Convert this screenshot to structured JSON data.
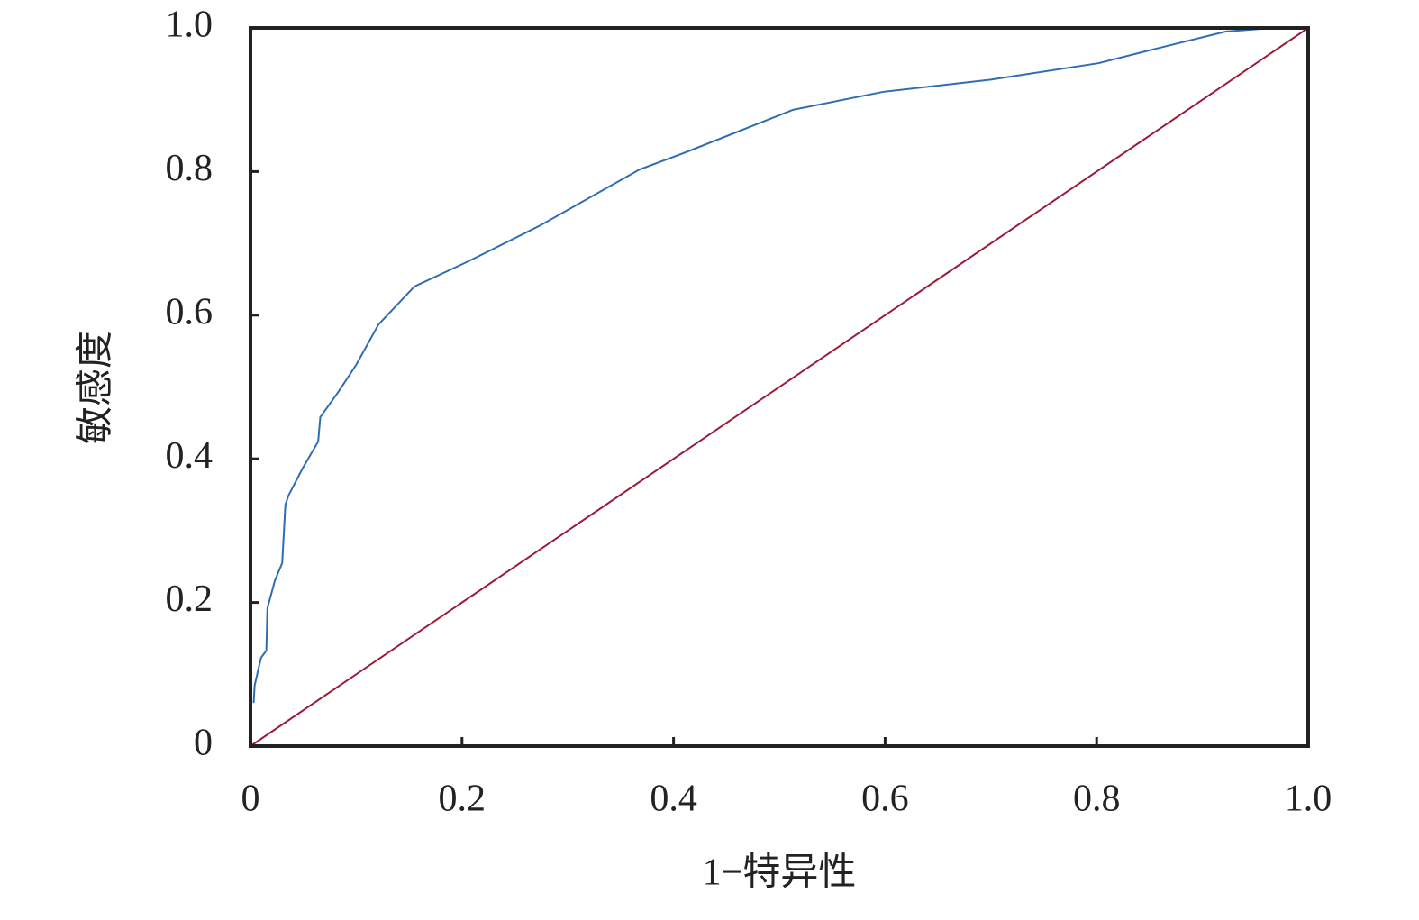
{
  "chart_data": {
    "type": "line",
    "x_label": "1−特异性",
    "y_label": "敏感度",
    "xlim": [
      0,
      1
    ],
    "ylim": [
      0,
      1
    ],
    "xticks": [
      0,
      0.2,
      0.4,
      0.6,
      0.8,
      {
        "value": 1,
        "label": "1.0"
      }
    ],
    "yticks": [
      0,
      0.2,
      0.4,
      0.6,
      0.8,
      {
        "value": 1,
        "label": "1.0"
      }
    ],
    "series": [
      {
        "color": "#2e6db4",
        "x": [
          0.003,
          0.004,
          0.01,
          0.015,
          0.016,
          0.023,
          0.03,
          0.033,
          0.036,
          0.049,
          0.064,
          0.066,
          0.083,
          0.1,
          0.121,
          0.155,
          0.206,
          0.274,
          0.368,
          0.41,
          0.513,
          0.598,
          0.7,
          0.802,
          0.853,
          0.922,
          0.958
        ],
        "values": [
          0.06,
          0.085,
          0.123,
          0.133,
          0.192,
          0.23,
          0.255,
          0.336,
          0.349,
          0.386,
          0.424,
          0.458,
          0.493,
          0.531,
          0.587,
          0.64,
          0.675,
          0.725,
          0.803,
          0.826,
          0.886,
          0.911,
          0.928,
          0.951,
          0.97,
          0.995,
          0.999
        ]
      },
      {
        "color": "#9b1b3a",
        "x": [
          0,
          1
        ],
        "values": [
          0,
          1
        ]
      }
    ]
  }
}
